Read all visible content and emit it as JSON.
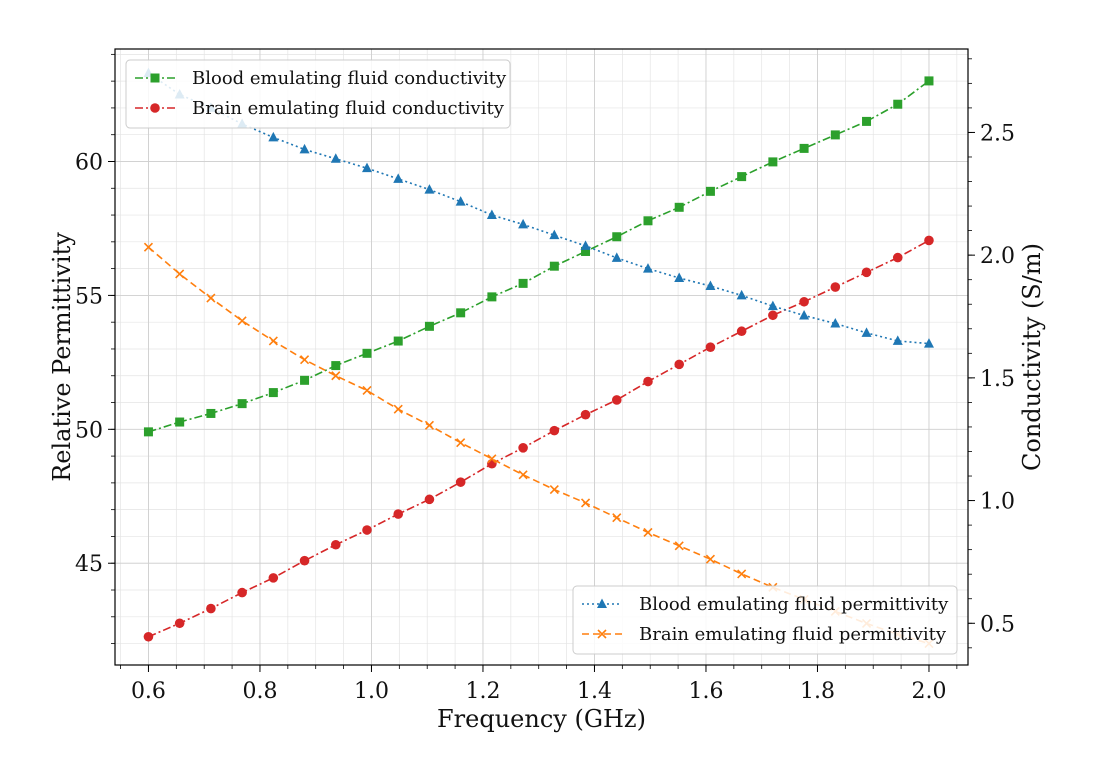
{
  "chart_data": {
    "type": "line",
    "xlabel": "Frequency (GHz)",
    "ylabel_left": "Relative Permittivity",
    "ylabel_right": "Conductivity (S/m)",
    "xlim": [
      0.54,
      2.07
    ],
    "ylim_left": [
      41.2,
      64.2
    ],
    "ylim_right": [
      0.33,
      2.84
    ],
    "grid": "major and minor",
    "x": [
      0.6,
      0.656,
      0.712,
      0.768,
      0.824,
      0.88,
      0.936,
      0.992,
      1.048,
      1.104,
      1.16,
      1.216,
      1.272,
      1.328,
      1.384,
      1.44,
      1.496,
      1.552,
      1.608,
      1.664,
      1.72,
      1.776,
      1.832,
      1.888,
      1.944,
      2.0
    ],
    "x_ticks": [
      "0.6",
      "0.8",
      "1.0",
      "1.2",
      "1.4",
      "1.6",
      "1.8",
      "2.0"
    ],
    "y_left_ticks": [
      "45",
      "50",
      "55",
      "60"
    ],
    "y_right_ticks": [
      "0.5",
      "1.0",
      "1.5",
      "2.0",
      "2.5"
    ],
    "series": [
      {
        "name": "Blood emulating fluid conductivity",
        "axis": "right",
        "color": "#2ca02c",
        "marker": "square",
        "linestyle": "dashdot",
        "values": [
          1.28,
          1.32,
          1.355,
          1.395,
          1.44,
          1.49,
          1.55,
          1.6,
          1.65,
          1.71,
          1.765,
          1.83,
          1.885,
          1.955,
          2.015,
          2.075,
          2.14,
          2.195,
          2.26,
          2.32,
          2.38,
          2.435,
          2.49,
          2.545,
          2.615,
          2.71
        ]
      },
      {
        "name": "Brain emulating fluid conductivity",
        "axis": "right",
        "color": "#d62728",
        "marker": "circle",
        "linestyle": "dashdot",
        "values": [
          0.445,
          0.5,
          0.56,
          0.625,
          0.685,
          0.755,
          0.82,
          0.88,
          0.945,
          1.005,
          1.075,
          1.15,
          1.215,
          1.285,
          1.35,
          1.41,
          1.485,
          1.555,
          1.625,
          1.69,
          1.755,
          1.81,
          1.87,
          1.93,
          1.99,
          2.06
        ]
      },
      {
        "name": "Blood emulating fluid permittivity",
        "axis": "left",
        "color": "#1f77b4",
        "marker": "triangle",
        "linestyle": "dotted",
        "values": [
          63.3,
          62.5,
          62.0,
          61.4,
          60.9,
          60.45,
          60.1,
          59.75,
          59.35,
          58.95,
          58.5,
          58.0,
          57.65,
          57.25,
          56.85,
          56.4,
          56.0,
          55.65,
          55.35,
          55.0,
          54.6,
          54.25,
          53.95,
          53.6,
          53.3,
          53.2
        ]
      },
      {
        "name": "Brain emulating fluid permittivity",
        "axis": "left",
        "color": "#ff7f0e",
        "marker": "x",
        "linestyle": "dashed",
        "values": [
          56.8,
          55.8,
          54.9,
          54.05,
          53.3,
          52.6,
          52.0,
          51.45,
          50.75,
          50.15,
          49.5,
          48.9,
          48.3,
          47.75,
          47.25,
          46.7,
          46.15,
          45.65,
          45.15,
          44.6,
          44.1,
          43.65,
          43.2,
          42.75,
          42.35,
          42.0
        ]
      }
    ],
    "legends": [
      {
        "placement": "upper-left",
        "entries": [
          0,
          1
        ]
      },
      {
        "placement": "lower-right",
        "entries": [
          2,
          3
        ]
      }
    ]
  }
}
